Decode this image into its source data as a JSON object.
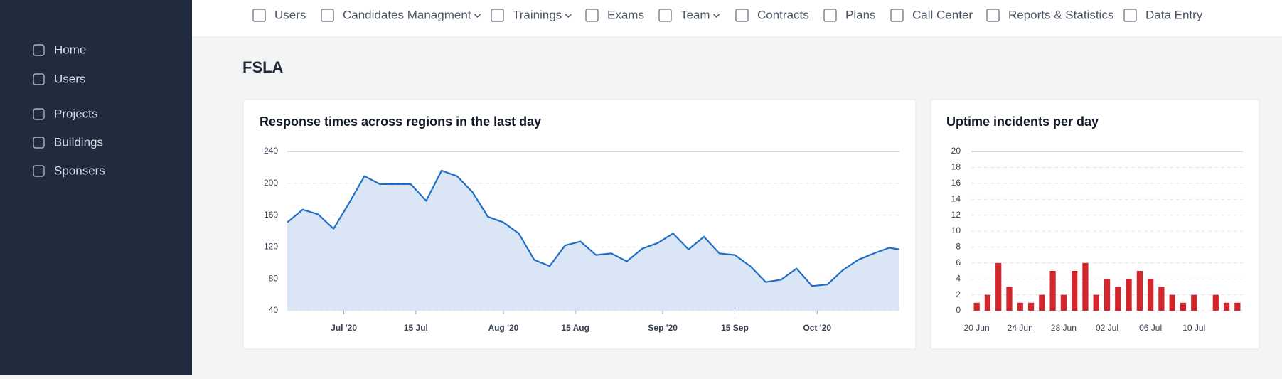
{
  "sidebar": {
    "items": [
      "Home",
      "Users",
      "Projects",
      "Buildings",
      "Sponsers"
    ]
  },
  "nav": {
    "items": [
      {
        "label": "Users",
        "dropdown": false
      },
      {
        "label": "Candidates Managment",
        "dropdown": true
      },
      {
        "label": "Trainings",
        "dropdown": true
      },
      {
        "label": "Exams",
        "dropdown": false
      },
      {
        "label": "Team",
        "dropdown": true
      },
      {
        "label": "Contracts",
        "dropdown": false
      },
      {
        "label": "Plans",
        "dropdown": false
      },
      {
        "label": "Call Center",
        "dropdown": false
      },
      {
        "label": "Reports & Statistics",
        "dropdown": false
      },
      {
        "label": "Data Entry",
        "dropdown": false
      }
    ]
  },
  "page": {
    "title": "FSLA"
  },
  "chart_data": [
    {
      "type": "area",
      "title": "Response times across regions in the last day",
      "color": "#1f6fc5",
      "fill_color": "#dae5f6",
      "x": [
        "2020-06-20",
        "2020-06-23",
        "2020-06-26",
        "2020-06-29",
        "2020-07-02",
        "2020-07-05",
        "2020-07-08",
        "2020-07-11",
        "2020-07-14",
        "2020-07-17",
        "2020-07-20",
        "2020-07-23",
        "2020-07-26",
        "2020-07-29",
        "2020-08-01",
        "2020-08-04",
        "2020-08-07",
        "2020-08-10",
        "2020-08-13",
        "2020-08-16",
        "2020-08-19",
        "2020-08-22",
        "2020-08-25",
        "2020-08-28",
        "2020-08-31",
        "2020-09-03",
        "2020-09-06",
        "2020-09-09",
        "2020-09-12",
        "2020-09-15",
        "2020-09-18",
        "2020-09-21",
        "2020-09-24",
        "2020-09-27",
        "2020-09-30",
        "2020-10-03",
        "2020-10-06",
        "2020-10-09",
        "2020-10-12",
        "2020-10-15",
        "2020-10-17"
      ],
      "values": [
        151,
        167,
        161,
        143,
        175,
        209,
        199,
        199,
        199,
        178,
        216,
        209,
        189,
        158,
        151,
        137,
        104,
        96,
        122,
        127,
        110,
        112,
        102,
        118,
        125,
        137,
        117,
        133,
        112,
        110,
        96,
        76,
        79,
        93,
        71,
        73,
        91,
        104,
        112,
        119,
        117
      ],
      "xlim": [
        "2020-06-20",
        "2020-10-17"
      ],
      "xticks": [
        {
          "value": "2020-07-01",
          "label": "Jul '20"
        },
        {
          "value": "2020-07-15",
          "label": "15 Jul"
        },
        {
          "value": "2020-08-01",
          "label": "Aug '20"
        },
        {
          "value": "2020-08-15",
          "label": "15 Aug"
        },
        {
          "value": "2020-09-01",
          "label": "Sep '20"
        },
        {
          "value": "2020-09-15",
          "label": "15 Sep"
        },
        {
          "value": "2020-10-01",
          "label": "Oct '20"
        }
      ],
      "ylim": [
        40,
        240
      ],
      "yticks": [
        40,
        80,
        120,
        160,
        200,
        240
      ],
      "grid": true
    },
    {
      "type": "bar",
      "title": "Uptime incidents per day",
      "color": "#d0262c",
      "categories": [
        "20 Jun",
        null,
        null,
        null,
        "24 Jun",
        null,
        null,
        null,
        "28 Jun",
        null,
        null,
        null,
        "02 Jul",
        null,
        null,
        null,
        "06 Jul",
        null,
        null,
        null,
        "10 Jul",
        null,
        null,
        null,
        null
      ],
      "values": [
        1,
        2,
        6,
        3,
        1,
        1,
        2,
        5,
        2,
        5,
        6,
        2,
        4,
        3,
        4,
        5,
        4,
        3,
        2,
        1,
        2,
        0,
        2,
        1,
        1
      ],
      "ylim": [
        0,
        20
      ],
      "yticks": [
        0,
        2,
        4,
        6,
        8,
        10,
        12,
        14,
        16,
        18,
        20
      ],
      "grid": true
    }
  ]
}
